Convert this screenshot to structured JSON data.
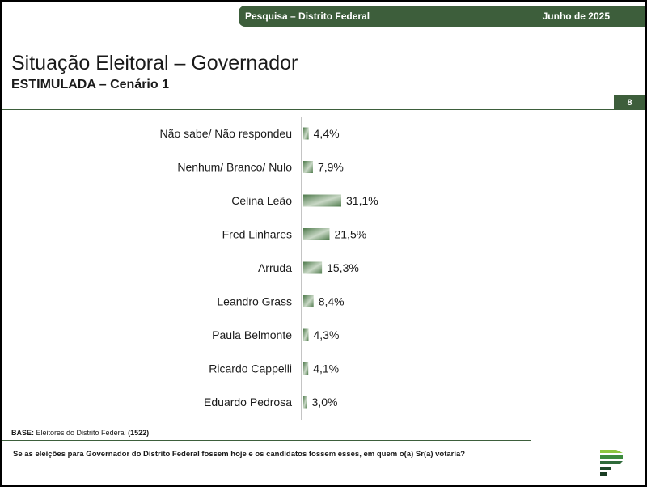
{
  "header": {
    "left": "Pesquisa – Distrito Federal",
    "right": "Junho de 2025"
  },
  "title": "Situação Eleitoral – Governador",
  "subtitle": "ESTIMULADA – Cenário 1",
  "page_number": "8",
  "base": {
    "label": "BASE:",
    "text": "Eleitores do Distrito Federal",
    "count": "(1522)"
  },
  "question": "Se as eleições para Governador do Distrito Federal fossem hoje e os candidatos fossem esses, em quem o(a) Sr(a) votaria?",
  "colors": {
    "accent": "#3d5e3b",
    "bar": "#4e7a4b",
    "bar_light": "#c9d8c6"
  },
  "chart_data": {
    "type": "bar",
    "orientation": "horizontal",
    "categories": [
      "Não sabe/ Não respondeu",
      "Nenhum/ Branco/ Nulo",
      "Celina Leão",
      "Fred Linhares",
      "Arruda",
      "Leandro Grass",
      "Paula Belmonte",
      "Ricardo Cappelli",
      "Eduardo Pedrosa"
    ],
    "values": [
      4.4,
      7.9,
      31.1,
      21.5,
      15.3,
      8.4,
      4.3,
      4.1,
      3.0
    ],
    "value_labels": [
      "4,4%",
      "7,9%",
      "31,1%",
      "21,5%",
      "15,3%",
      "8,4%",
      "4,3%",
      "4,1%",
      "3,0%"
    ],
    "unit": "%",
    "xlim": [
      0,
      31.1
    ],
    "grid": false,
    "legend": "none"
  }
}
